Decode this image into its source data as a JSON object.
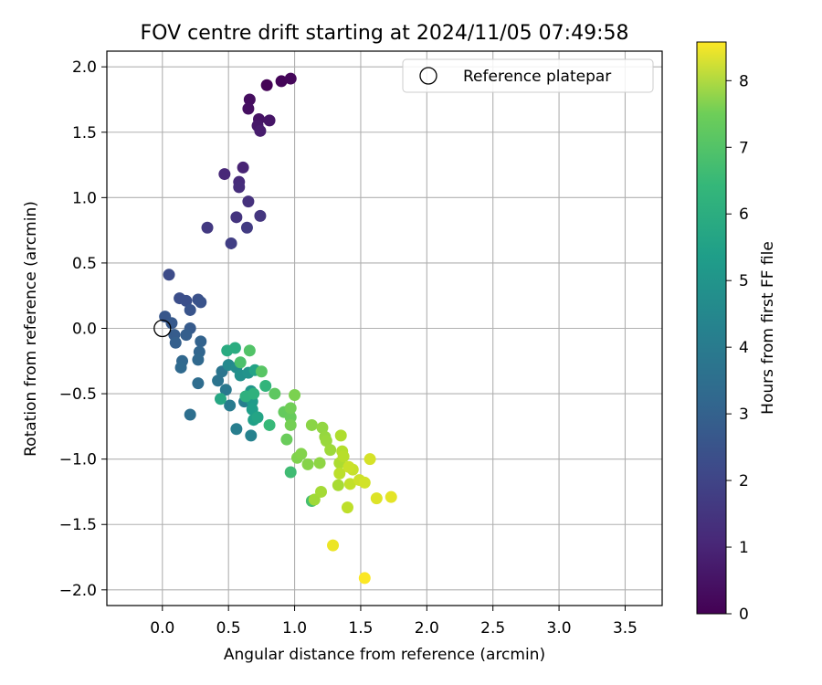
{
  "chart_data": {
    "type": "scatter",
    "title": "FOV centre drift starting at 2024/11/05 07:49:58",
    "xlabel": "Angular distance from reference (arcmin)",
    "ylabel": "Rotation from reference (arcmin)",
    "xlim": [
      -0.42,
      3.78
    ],
    "ylim": [
      -2.12,
      2.12
    ],
    "x_ticks": [
      0.0,
      0.5,
      1.0,
      1.5,
      2.0,
      2.5,
      3.0,
      3.5
    ],
    "x_tick_labels": [
      "0.0",
      "0.5",
      "1.0",
      "1.5",
      "2.0",
      "2.5",
      "3.0",
      "3.5"
    ],
    "y_ticks": [
      2.0,
      1.5,
      1.0,
      0.5,
      0.0,
      -0.5,
      -1.0,
      -1.5,
      -2.0
    ],
    "y_tick_labels": [
      "2.0",
      "1.5",
      "1.0",
      "0.5",
      "0.0",
      "−0.5",
      "−1.0",
      "−1.5",
      "−2.0"
    ],
    "grid": true,
    "legend": {
      "placement": "top-right",
      "entries": [
        "Reference platepar"
      ]
    },
    "reference_point": {
      "x": 0.0,
      "y": 0.0
    },
    "colorbar": {
      "label": "Hours from first FF file",
      "range": [
        0,
        8.58
      ],
      "ticks": [
        0,
        1,
        2,
        3,
        4,
        5,
        6,
        7,
        8
      ],
      "tick_labels": [
        "0",
        "1",
        "2",
        "3",
        "4",
        "5",
        "6",
        "7",
        "8"
      ],
      "colormap": "viridis"
    },
    "points": [
      {
        "x": 0.79,
        "y": 1.86,
        "h": 0.05
      },
      {
        "x": 0.9,
        "y": 1.89,
        "h": 0.1
      },
      {
        "x": 0.97,
        "y": 1.91,
        "h": 0.15
      },
      {
        "x": 0.66,
        "y": 1.75,
        "h": 0.3
      },
      {
        "x": 0.65,
        "y": 1.68,
        "h": 0.35
      },
      {
        "x": 0.73,
        "y": 1.6,
        "h": 0.45
      },
      {
        "x": 0.81,
        "y": 1.59,
        "h": 0.5
      },
      {
        "x": 0.72,
        "y": 1.55,
        "h": 0.55
      },
      {
        "x": 0.74,
        "y": 1.51,
        "h": 0.65
      },
      {
        "x": 0.61,
        "y": 1.23,
        "h": 0.85
      },
      {
        "x": 0.47,
        "y": 1.18,
        "h": 0.95
      },
      {
        "x": 0.58,
        "y": 1.12,
        "h": 1.05
      },
      {
        "x": 0.58,
        "y": 1.08,
        "h": 1.1
      },
      {
        "x": 0.65,
        "y": 0.97,
        "h": 1.2
      },
      {
        "x": 0.56,
        "y": 0.85,
        "h": 1.3
      },
      {
        "x": 0.74,
        "y": 0.86,
        "h": 1.35
      },
      {
        "x": 0.34,
        "y": 0.77,
        "h": 1.45
      },
      {
        "x": 0.64,
        "y": 0.77,
        "h": 1.5
      },
      {
        "x": 0.52,
        "y": 0.65,
        "h": 1.6
      },
      {
        "x": 0.05,
        "y": 0.41,
        "h": 2.0
      },
      {
        "x": 0.13,
        "y": 0.23,
        "h": 2.05
      },
      {
        "x": 0.18,
        "y": 0.21,
        "h": 2.1
      },
      {
        "x": 0.27,
        "y": 0.22,
        "h": 2.15
      },
      {
        "x": 0.29,
        "y": 0.2,
        "h": 2.2
      },
      {
        "x": 0.21,
        "y": 0.14,
        "h": 2.25
      },
      {
        "x": 0.02,
        "y": 0.09,
        "h": 2.35
      },
      {
        "x": 0.07,
        "y": 0.04,
        "h": 2.4
      },
      {
        "x": 0.21,
        "y": 0.0,
        "h": 2.45
      },
      {
        "x": 0.09,
        "y": -0.05,
        "h": 2.5
      },
      {
        "x": 0.18,
        "y": -0.05,
        "h": 2.55
      },
      {
        "x": 0.1,
        "y": -0.11,
        "h": 2.6
      },
      {
        "x": 0.29,
        "y": -0.1,
        "h": 2.7
      },
      {
        "x": 0.28,
        "y": -0.18,
        "h": 2.8
      },
      {
        "x": 0.15,
        "y": -0.25,
        "h": 2.85
      },
      {
        "x": 0.27,
        "y": -0.24,
        "h": 2.9
      },
      {
        "x": 0.14,
        "y": -0.3,
        "h": 2.95
      },
      {
        "x": 0.27,
        "y": -0.42,
        "h": 3.05
      },
      {
        "x": 0.21,
        "y": -0.66,
        "h": 3.1
      },
      {
        "x": 0.42,
        "y": -0.4,
        "h": 3.3
      },
      {
        "x": 0.45,
        "y": -0.33,
        "h": 3.35
      },
      {
        "x": 0.48,
        "y": -0.47,
        "h": 3.45
      },
      {
        "x": 0.51,
        "y": -0.59,
        "h": 3.55
      },
      {
        "x": 0.56,
        "y": -0.77,
        "h": 3.65
      },
      {
        "x": 0.62,
        "y": -0.56,
        "h": 3.7
      },
      {
        "x": 0.67,
        "y": -0.82,
        "h": 3.8
      },
      {
        "x": 0.5,
        "y": -0.28,
        "h": 4.05
      },
      {
        "x": 0.56,
        "y": -0.3,
        "h": 4.15
      },
      {
        "x": 0.59,
        "y": -0.36,
        "h": 4.3
      },
      {
        "x": 0.65,
        "y": -0.34,
        "h": 4.4
      },
      {
        "x": 0.67,
        "y": -0.48,
        "h": 4.5
      },
      {
        "x": 0.68,
        "y": -0.56,
        "h": 4.65
      },
      {
        "x": 0.68,
        "y": -0.62,
        "h": 4.75
      },
      {
        "x": 0.69,
        "y": -0.7,
        "h": 4.85
      },
      {
        "x": 0.7,
        "y": -0.32,
        "h": 4.95
      },
      {
        "x": 0.72,
        "y": -0.68,
        "h": 5.0
      },
      {
        "x": 0.44,
        "y": -0.54,
        "h": 5.1
      },
      {
        "x": 0.49,
        "y": -0.17,
        "h": 5.25
      },
      {
        "x": 0.55,
        "y": -0.15,
        "h": 5.3
      },
      {
        "x": 0.63,
        "y": -0.52,
        "h": 5.45
      },
      {
        "x": 0.69,
        "y": -0.5,
        "h": 5.5
      },
      {
        "x": 0.78,
        "y": -0.44,
        "h": 5.6
      },
      {
        "x": 0.81,
        "y": -0.74,
        "h": 5.75
      },
      {
        "x": 0.97,
        "y": -1.1,
        "h": 5.9
      },
      {
        "x": 1.13,
        "y": -1.32,
        "h": 6.0
      },
      {
        "x": 0.59,
        "y": -0.26,
        "h": 6.1
      },
      {
        "x": 0.66,
        "y": -0.17,
        "h": 6.2
      },
      {
        "x": 0.75,
        "y": -0.33,
        "h": 6.3
      },
      {
        "x": 0.85,
        "y": -0.5,
        "h": 6.4
      },
      {
        "x": 0.92,
        "y": -0.64,
        "h": 6.5
      },
      {
        "x": 0.97,
        "y": -0.68,
        "h": 6.55
      },
      {
        "x": 0.94,
        "y": -0.85,
        "h": 6.6
      },
      {
        "x": 0.97,
        "y": -0.61,
        "h": 6.7
      },
      {
        "x": 0.97,
        "y": -0.74,
        "h": 6.75
      },
      {
        "x": 1.0,
        "y": -0.51,
        "h": 6.85
      },
      {
        "x": 1.02,
        "y": -0.99,
        "h": 6.9
      },
      {
        "x": 1.05,
        "y": -0.96,
        "h": 6.95
      },
      {
        "x": 1.1,
        "y": -1.04,
        "h": 7.0
      },
      {
        "x": 1.13,
        "y": -0.74,
        "h": 7.05
      },
      {
        "x": 1.19,
        "y": -1.03,
        "h": 7.1
      },
      {
        "x": 1.21,
        "y": -0.76,
        "h": 7.15
      },
      {
        "x": 1.23,
        "y": -0.83,
        "h": 7.2
      },
      {
        "x": 1.24,
        "y": -0.86,
        "h": 7.25
      },
      {
        "x": 1.27,
        "y": -0.93,
        "h": 7.3
      },
      {
        "x": 1.15,
        "y": -1.31,
        "h": 7.35
      },
      {
        "x": 1.2,
        "y": -1.25,
        "h": 7.4
      },
      {
        "x": 1.33,
        "y": -1.2,
        "h": 7.45
      },
      {
        "x": 1.34,
        "y": -1.03,
        "h": 7.5
      },
      {
        "x": 1.35,
        "y": -0.82,
        "h": 7.55
      },
      {
        "x": 1.36,
        "y": -0.94,
        "h": 7.6
      },
      {
        "x": 1.37,
        "y": -0.98,
        "h": 7.65
      },
      {
        "x": 1.34,
        "y": -1.11,
        "h": 7.7
      },
      {
        "x": 1.4,
        "y": -1.37,
        "h": 7.75
      },
      {
        "x": 1.42,
        "y": -1.19,
        "h": 7.8
      },
      {
        "x": 1.44,
        "y": -1.08,
        "h": 7.85
      },
      {
        "x": 1.41,
        "y": -1.06,
        "h": 7.9
      },
      {
        "x": 1.49,
        "y": -1.16,
        "h": 7.95
      },
      {
        "x": 1.53,
        "y": -1.18,
        "h": 8.0
      },
      {
        "x": 1.57,
        "y": -1.0,
        "h": 8.05
      },
      {
        "x": 1.62,
        "y": -1.3,
        "h": 8.15
      },
      {
        "x": 1.73,
        "y": -1.29,
        "h": 8.25
      },
      {
        "x": 1.29,
        "y": -1.66,
        "h": 8.35
      },
      {
        "x": 1.53,
        "y": -1.91,
        "h": 8.55
      }
    ]
  }
}
